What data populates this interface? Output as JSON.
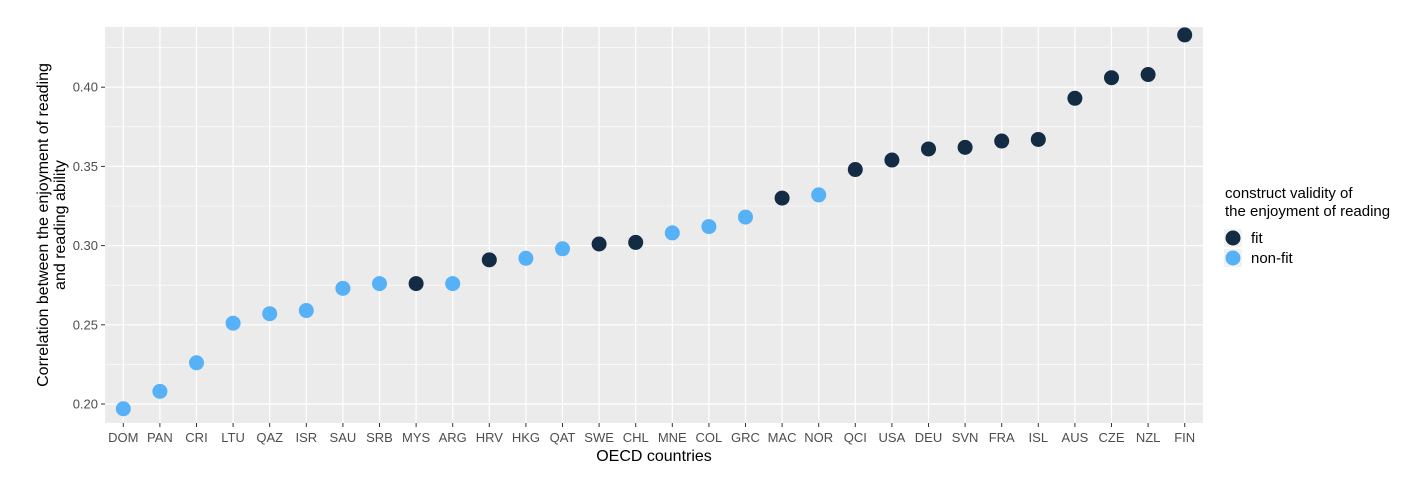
{
  "chart_data": {
    "type": "scatter",
    "title": "",
    "xlabel": "OECD countries",
    "ylabel": "Correlation between the enjoyment of reading and reading ability",
    "ylabel_lines": [
      "Correlation between the enjoyment of reading",
      "and reading ability"
    ],
    "ylim": [
      0.188,
      0.438
    ],
    "yticks": [
      0.2,
      0.25,
      0.3,
      0.35,
      0.4
    ],
    "ytick_labels": [
      "0.20",
      "0.25",
      "0.30",
      "0.35",
      "0.40"
    ],
    "grid": true,
    "background": "#EBEBEB",
    "legend": {
      "title_lines": [
        "construct validity of",
        "the enjoyment of reading"
      ],
      "placement": "right",
      "entries": [
        {
          "key": "fit",
          "label": "fit",
          "color": "#132B43"
        },
        {
          "key": "non-fit",
          "label": "non-fit",
          "color": "#56B1F7"
        }
      ]
    },
    "points": [
      {
        "x": "DOM",
        "y": 0.197,
        "group": "non-fit"
      },
      {
        "x": "PAN",
        "y": 0.208,
        "group": "non-fit"
      },
      {
        "x": "CRI",
        "y": 0.226,
        "group": "non-fit"
      },
      {
        "x": "LTU",
        "y": 0.251,
        "group": "non-fit"
      },
      {
        "x": "QAZ",
        "y": 0.257,
        "group": "non-fit"
      },
      {
        "x": "ISR",
        "y": 0.259,
        "group": "non-fit"
      },
      {
        "x": "SAU",
        "y": 0.273,
        "group": "non-fit"
      },
      {
        "x": "SRB",
        "y": 0.276,
        "group": "non-fit"
      },
      {
        "x": "MYS",
        "y": 0.276,
        "group": "fit"
      },
      {
        "x": "ARG",
        "y": 0.276,
        "group": "non-fit"
      },
      {
        "x": "HRV",
        "y": 0.291,
        "group": "fit"
      },
      {
        "x": "HKG",
        "y": 0.292,
        "group": "non-fit"
      },
      {
        "x": "QAT",
        "y": 0.298,
        "group": "non-fit"
      },
      {
        "x": "SWE",
        "y": 0.301,
        "group": "fit"
      },
      {
        "x": "CHL",
        "y": 0.302,
        "group": "fit"
      },
      {
        "x": "MNE",
        "y": 0.308,
        "group": "non-fit"
      },
      {
        "x": "COL",
        "y": 0.312,
        "group": "non-fit"
      },
      {
        "x": "GRC",
        "y": 0.318,
        "group": "non-fit"
      },
      {
        "x": "MAC",
        "y": 0.33,
        "group": "fit"
      },
      {
        "x": "NOR",
        "y": 0.332,
        "group": "non-fit"
      },
      {
        "x": "QCI",
        "y": 0.348,
        "group": "fit"
      },
      {
        "x": "USA",
        "y": 0.354,
        "group": "fit"
      },
      {
        "x": "DEU",
        "y": 0.361,
        "group": "fit"
      },
      {
        "x": "SVN",
        "y": 0.362,
        "group": "fit"
      },
      {
        "x": "FRA",
        "y": 0.366,
        "group": "fit"
      },
      {
        "x": "ISL",
        "y": 0.367,
        "group": "fit"
      },
      {
        "x": "AUS",
        "y": 0.393,
        "group": "fit"
      },
      {
        "x": "CZE",
        "y": 0.406,
        "group": "fit"
      },
      {
        "x": "NZL",
        "y": 0.408,
        "group": "fit"
      },
      {
        "x": "FIN",
        "y": 0.433,
        "group": "fit"
      }
    ]
  }
}
